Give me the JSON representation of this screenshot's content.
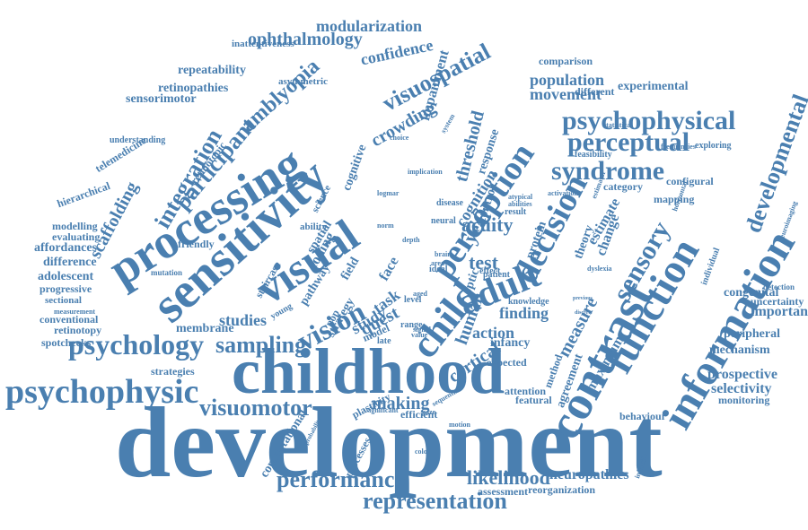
{
  "colors": {
    "word": "#4a7fb0",
    "background": "#ffffff"
  },
  "words": [
    "development",
    "childhood",
    "processing",
    "sensitivity",
    "contrast",
    "visual",
    "information",
    "adult",
    "function",
    "child",
    "perception",
    "decision",
    "vision",
    "psychophysic",
    "psychology",
    "psychophysical",
    "perceptual",
    "syndrome",
    "developmental",
    "visuospatial",
    "representation",
    "performance",
    "visuomotor",
    "sampling",
    "sensory",
    "integration",
    "participant",
    "amblyopia",
    "modularization",
    "ophthalmology",
    "confidence",
    "crowding",
    "threshold",
    "impairment",
    "population",
    "movement",
    "repeatability",
    "retinopathies",
    "sensorimotor",
    "inattentiveness",
    "asymmetric",
    "experimental",
    "different",
    "comparison",
    "telemedicine",
    "understanding",
    "retinotopic",
    "hierarchical",
    "modelling",
    "evaluating",
    "affordances",
    "difference",
    "adolescent",
    "progressive",
    "sectional",
    "measurement",
    "conventional",
    "retinotopy",
    "spotchecks",
    "strategies",
    "studies",
    "membrane",
    "mutation",
    "scaffolding",
    "friendly",
    "cognitive",
    "spatial",
    "coding",
    "face",
    "task",
    "quest",
    "field",
    "study",
    "pathway",
    "staircase",
    "ability",
    "science",
    "young",
    "model",
    "strategy",
    "pop",
    "test",
    "acuity",
    "year",
    "human",
    "cognition",
    "control",
    "response",
    "optic",
    "action",
    "finding",
    "infancy",
    "expected",
    "featural",
    "attention",
    "making",
    "plasticity",
    "efficient",
    "cortical",
    "likelihood",
    "neuropathies",
    "reorganization",
    "assessment",
    "computational",
    "processes",
    "probability",
    "significant",
    "sequential",
    "method",
    "agreement",
    "maximum",
    "measure",
    "theory",
    "protein",
    "change",
    "estimate",
    "category",
    "configural",
    "mapping",
    "feasibility",
    "frequencies",
    "exploring",
    "statistical",
    "estimator",
    "activation",
    "atypical",
    "abilities",
    "previous",
    "discrete",
    "neural",
    "brain",
    "area",
    "aged",
    "level",
    "range",
    "value",
    "signal",
    "late",
    "ideal",
    "effect",
    "patient",
    "result",
    "disease",
    "implication",
    "choice",
    "logmar",
    "system",
    "knowledge",
    "mechanism",
    "prospective",
    "selectivity",
    "monitoring",
    "peripheral",
    "important",
    "congenital",
    "uncertainty",
    "neuroimaging",
    "detection",
    "behaviour",
    "individual",
    "horizontal",
    "infantile",
    "dyslexia",
    "gaze",
    "motion",
    "edge",
    "color",
    "norm",
    "depth"
  ]
}
